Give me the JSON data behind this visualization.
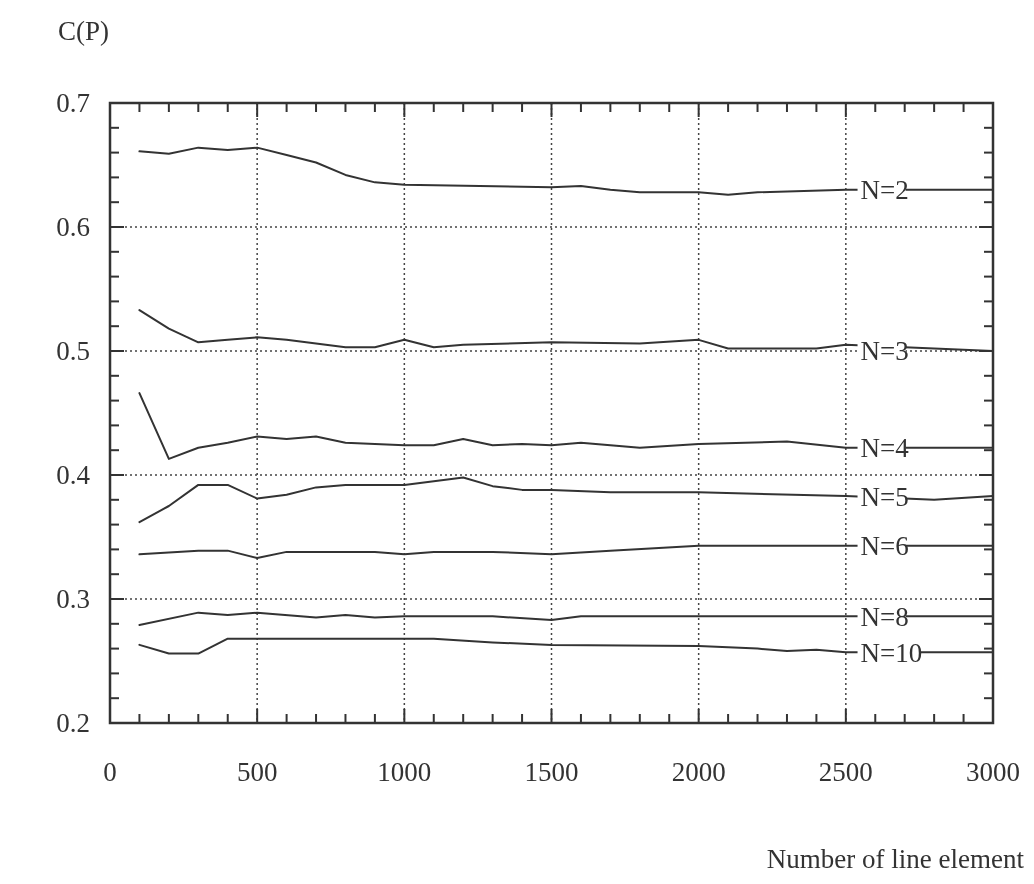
{
  "chart_data": {
    "type": "line",
    "xlabel": "Number of line element",
    "ylabel": "C(P)",
    "xlim": [
      0,
      3000
    ],
    "ylim": [
      0.2,
      0.7
    ],
    "xticks": [
      0,
      {
        "value": 100,
        "label": null
      },
      {
        "value": 200,
        "label": null
      },
      {
        "value": 300,
        "label": null
      },
      {
        "value": 400,
        "label": null
      },
      500,
      {
        "value": 600,
        "label": null
      },
      {
        "value": 700,
        "label": null
      },
      {
        "value": 800,
        "label": null
      },
      {
        "value": 900,
        "label": null
      },
      1000,
      {
        "value": 1100,
        "label": null
      },
      {
        "value": 1200,
        "label": null
      },
      {
        "value": 1300,
        "label": null
      },
      {
        "value": 1400,
        "label": null
      },
      1500,
      {
        "value": 1600,
        "label": null
      },
      {
        "value": 1700,
        "label": null
      },
      {
        "value": 1800,
        "label": null
      },
      {
        "value": 1900,
        "label": null
      },
      2000,
      {
        "value": 2100,
        "label": null
      },
      {
        "value": 2200,
        "label": null
      },
      {
        "value": 2300,
        "label": null
      },
      {
        "value": 2400,
        "label": null
      },
      2500,
      {
        "value": 2600,
        "label": null
      },
      {
        "value": 2700,
        "label": null
      },
      {
        "value": 2800,
        "label": null
      },
      {
        "value": 2900,
        "label": null
      },
      3000
    ],
    "yticks": [
      0.2,
      {
        "value": 0.22,
        "label": null
      },
      {
        "value": 0.24,
        "label": null
      },
      {
        "value": 0.26,
        "label": null
      },
      {
        "value": 0.28,
        "label": null
      },
      0.3,
      {
        "value": 0.32,
        "label": null
      },
      {
        "value": 0.34,
        "label": null
      },
      {
        "value": 0.36,
        "label": null
      },
      {
        "value": 0.38,
        "label": null
      },
      0.4,
      {
        "value": 0.42,
        "label": null
      },
      {
        "value": 0.44,
        "label": null
      },
      {
        "value": 0.46,
        "label": null
      },
      {
        "value": 0.48,
        "label": null
      },
      0.5,
      {
        "value": 0.52,
        "label": null
      },
      {
        "value": 0.54,
        "label": null
      },
      {
        "value": 0.56,
        "label": null
      },
      {
        "value": 0.58,
        "label": null
      },
      0.6,
      {
        "value": 0.62,
        "label": null
      },
      {
        "value": 0.64,
        "label": null
      },
      {
        "value": 0.66,
        "label": null
      },
      {
        "value": 0.68,
        "label": null
      },
      0.7
    ],
    "grid": true,
    "legend": false,
    "line_style": "solid",
    "series": [
      {
        "name": "N=2",
        "color": "#333333",
        "x": [
          100,
          200,
          300,
          400,
          500,
          600,
          700,
          800,
          900,
          1000,
          1500,
          1600,
          1700,
          1800,
          2000,
          2100,
          2200,
          2500,
          3000
        ],
        "values": [
          0.661,
          0.659,
          0.664,
          0.662,
          0.664,
          0.658,
          0.652,
          0.642,
          0.636,
          0.634,
          0.632,
          0.633,
          0.63,
          0.628,
          0.628,
          0.626,
          0.628,
          0.63,
          0.63
        ]
      },
      {
        "name": "N=3",
        "color": "#333333",
        "x": [
          100,
          200,
          300,
          400,
          500,
          600,
          700,
          800,
          900,
          1000,
          1100,
          1200,
          1500,
          1800,
          2000,
          2100,
          2400,
          2500,
          3000
        ],
        "values": [
          0.533,
          0.518,
          0.507,
          0.509,
          0.511,
          0.509,
          0.506,
          0.503,
          0.503,
          0.509,
          0.503,
          0.505,
          0.507,
          0.506,
          0.509,
          0.502,
          0.502,
          0.505,
          0.5
        ]
      },
      {
        "name": "N=4",
        "color": "#333333",
        "x": [
          100,
          200,
          300,
          400,
          500,
          600,
          700,
          800,
          1000,
          1100,
          1200,
          1300,
          1400,
          1500,
          1600,
          1800,
          2000,
          2300,
          2500,
          3000
        ],
        "values": [
          0.466,
          0.413,
          0.422,
          0.426,
          0.431,
          0.429,
          0.431,
          0.426,
          0.424,
          0.424,
          0.429,
          0.424,
          0.425,
          0.424,
          0.426,
          0.422,
          0.425,
          0.427,
          0.422,
          0.422
        ]
      },
      {
        "name": "N=5",
        "color": "#333333",
        "x": [
          100,
          200,
          300,
          400,
          500,
          600,
          700,
          800,
          1000,
          1200,
          1300,
          1400,
          1500,
          1700,
          2000,
          2500,
          2800,
          3000
        ],
        "values": [
          0.362,
          0.375,
          0.392,
          0.392,
          0.381,
          0.384,
          0.39,
          0.392,
          0.392,
          0.398,
          0.391,
          0.388,
          0.388,
          0.386,
          0.386,
          0.383,
          0.38,
          0.383
        ]
      },
      {
        "name": "N=6",
        "color": "#333333",
        "x": [
          100,
          300,
          400,
          500,
          600,
          900,
          1000,
          1100,
          1300,
          1500,
          1700,
          2000,
          3000
        ],
        "values": [
          0.336,
          0.339,
          0.339,
          0.333,
          0.338,
          0.338,
          0.336,
          0.338,
          0.338,
          0.336,
          0.339,
          0.343,
          0.343
        ]
      },
      {
        "name": "N=8",
        "color": "#333333",
        "x": [
          100,
          300,
          400,
          500,
          700,
          800,
          900,
          1000,
          1300,
          1500,
          1600,
          2000,
          3000
        ],
        "values": [
          0.279,
          0.289,
          0.287,
          0.289,
          0.285,
          0.287,
          0.285,
          0.286,
          0.286,
          0.283,
          0.286,
          0.286,
          0.286
        ]
      },
      {
        "name": "N=10",
        "color": "#333333",
        "x": [
          100,
          200,
          300,
          400,
          1000,
          1100,
          1300,
          1500,
          2000,
          2200,
          2300,
          2400,
          2500,
          3000
        ],
        "values": [
          0.263,
          0.256,
          0.256,
          0.268,
          0.268,
          0.268,
          0.265,
          0.263,
          0.262,
          0.26,
          0.258,
          0.259,
          0.257,
          0.257
        ]
      }
    ]
  }
}
